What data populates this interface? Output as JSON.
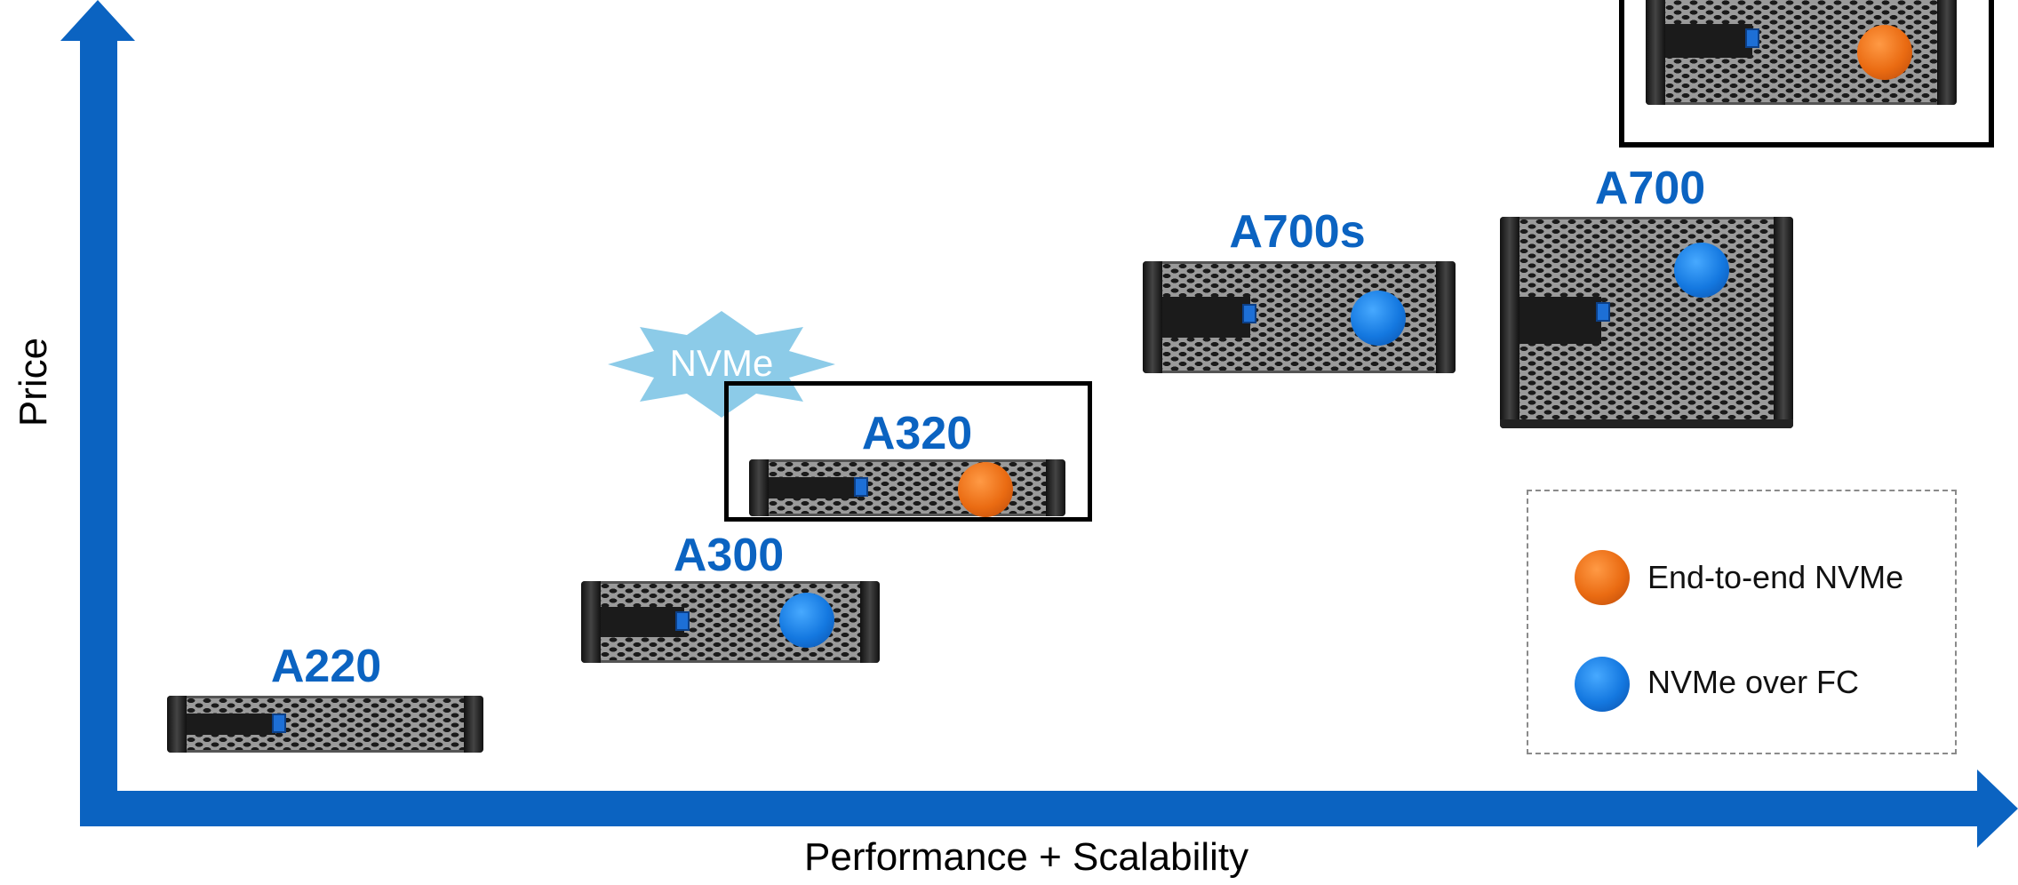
{
  "axes": {
    "y_label": "Price",
    "x_label": "Performance + Scalability"
  },
  "callout": {
    "text": "NVMe"
  },
  "models": [
    {
      "label": "A220",
      "indicator": "none"
    },
    {
      "label": "A300",
      "indicator": "blue"
    },
    {
      "label": "A320",
      "indicator": "orange"
    },
    {
      "label": "A700s",
      "indicator": "blue"
    },
    {
      "label": "A700",
      "indicator": "blue"
    },
    {
      "label": "",
      "indicator": "orange"
    }
  ],
  "legend": [
    {
      "label": "End-to-end NVMe",
      "color": "orange"
    },
    {
      "label": "NVMe over FC",
      "color": "blue"
    }
  ],
  "colors": {
    "axis": "#0b63c1",
    "model_label": "#0b63c1",
    "callout": "#8ccbe8",
    "orange": "#ea6b12",
    "blue": "#1478e0"
  }
}
